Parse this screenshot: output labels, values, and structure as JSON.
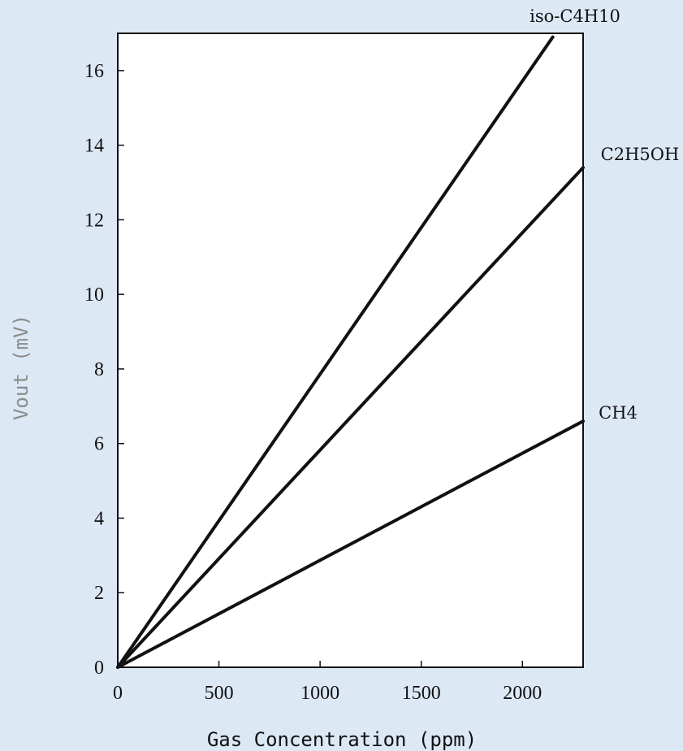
{
  "chart_data": {
    "type": "line",
    "title": "",
    "xlabel": "Gas Concentration (ppm)",
    "ylabel": "Vout (mV)",
    "xlim": [
      0,
      2300
    ],
    "ylim": [
      0,
      17
    ],
    "x_ticks": [
      0,
      500,
      1000,
      1500,
      2000
    ],
    "y_ticks": [
      0,
      2,
      4,
      6,
      8,
      10,
      12,
      14,
      16
    ],
    "x_tick_labels": [
      "0",
      "500",
      "1000",
      "1500",
      "2000"
    ],
    "y_tick_labels": [
      "0",
      "2",
      "4",
      "6",
      "8",
      "10",
      "12",
      "14",
      "16"
    ],
    "grid": false,
    "legend": "none",
    "series": [
      {
        "name": "iso-C4H10",
        "x": [
          0,
          2150
        ],
        "y": [
          0,
          16.9
        ]
      },
      {
        "name": "C2H5OH",
        "x": [
          0,
          2300
        ],
        "y": [
          0,
          13.4
        ]
      },
      {
        "name": "CH4",
        "x": [
          0,
          2300
        ],
        "y": [
          0,
          6.6
        ]
      }
    ],
    "colors": {
      "background": "#dde8f5",
      "plot_area": "#ffffff",
      "line": "#111111",
      "ylabel": "#8c8c8c",
      "xlabel": "#111111"
    }
  }
}
